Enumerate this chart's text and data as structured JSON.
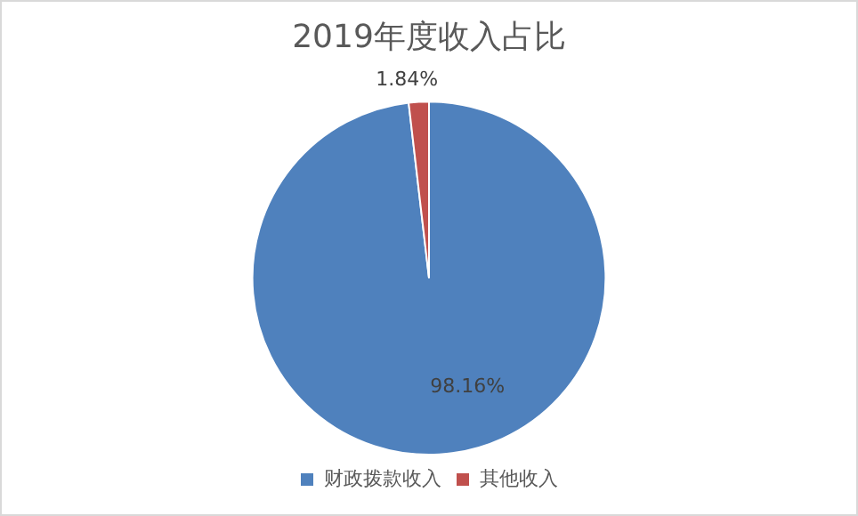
{
  "chart_data": {
    "type": "pie",
    "title": "2019年度收入占比",
    "categories": [
      "财政拨款收入",
      "其他收入"
    ],
    "values": [
      98.16,
      1.84
    ],
    "colors": [
      "#4f81bd",
      "#c0504d"
    ],
    "value_labels": [
      "98.16%",
      "1.84%"
    ],
    "legend": "bottom"
  }
}
